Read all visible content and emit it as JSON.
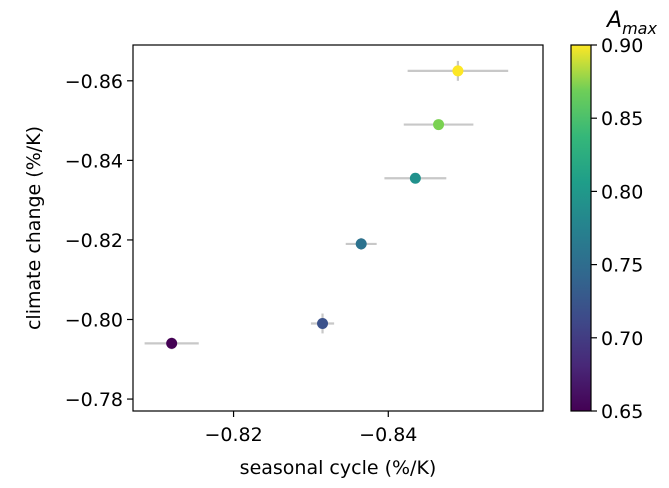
{
  "chart_data": {
    "type": "scatter",
    "xlabel": "seasonal cycle (%/K)",
    "ylabel": "climate change (%/K)",
    "xlim": [
      -0.807,
      -0.86
    ],
    "ylim": [
      -0.777,
      -0.869
    ],
    "x_ticks": [
      -0.82,
      -0.84
    ],
    "x_tick_labels": [
      "−0.82",
      "−0.84"
    ],
    "y_ticks": [
      -0.78,
      -0.8,
      -0.82,
      -0.84,
      -0.86
    ],
    "y_tick_labels": [
      "−0.78",
      "−0.80",
      "−0.82",
      "−0.84",
      "−0.86"
    ],
    "grid": false,
    "colorbar": {
      "label_main": "A",
      "label_sub": "max",
      "range": [
        0.65,
        0.9
      ],
      "ticks": [
        0.65,
        0.7,
        0.75,
        0.8,
        0.85,
        0.9
      ],
      "tick_labels": [
        "0.65",
        "0.70",
        "0.75",
        "0.80",
        "0.85",
        "0.90"
      ],
      "colormap": "viridis"
    },
    "points": [
      {
        "x": -0.812,
        "y": -0.794,
        "xerr": 0.0035,
        "yerr": 0.0015,
        "a_max": 0.65,
        "color": "#440154"
      },
      {
        "x": -0.8315,
        "y": -0.799,
        "xerr": 0.0015,
        "yerr": 0.0025,
        "a_max": 0.7,
        "color": "#3b528b"
      },
      {
        "x": -0.8365,
        "y": -0.819,
        "xerr": 0.002,
        "yerr": 0.0015,
        "a_max": 0.75,
        "color": "#2c728e"
      },
      {
        "x": -0.8435,
        "y": -0.8355,
        "xerr": 0.004,
        "yerr": 0.001,
        "a_max": 0.8,
        "color": "#21918c"
      },
      {
        "x": -0.8465,
        "y": -0.849,
        "xerr": 0.0045,
        "yerr": 0.001,
        "a_max": 0.85,
        "color": "#7ad151"
      },
      {
        "x": -0.849,
        "y": -0.8625,
        "xerr": 0.0065,
        "yerr": 0.0025,
        "a_max": 0.9,
        "color": "#fde725"
      }
    ],
    "errorbar_color": "#c8c8c8"
  }
}
